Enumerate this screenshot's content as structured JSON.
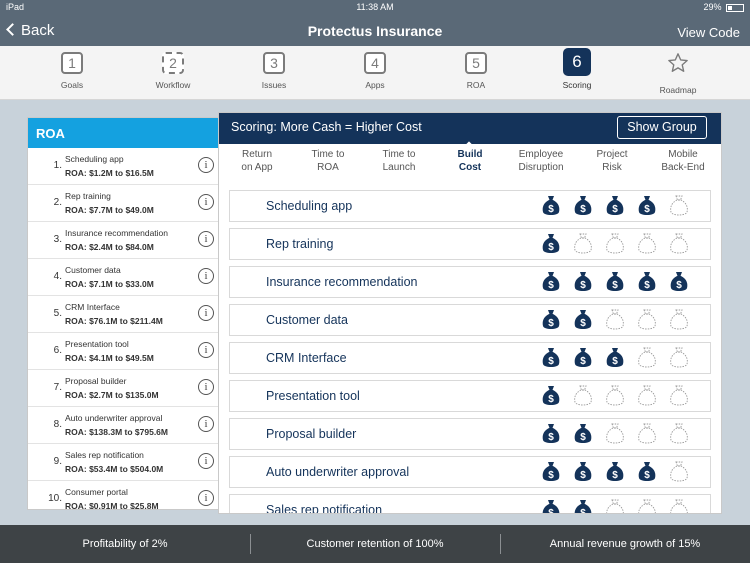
{
  "status": {
    "device": "iPad",
    "time": "11:38 AM",
    "battery": "29%",
    "battery_level": 0.29
  },
  "header": {
    "back_label": "Back",
    "title": "Protectus Insurance",
    "view_code_label": "View Code"
  },
  "steps": [
    {
      "num": "1",
      "label": "Goals"
    },
    {
      "num": "2",
      "label": "Workflow"
    },
    {
      "num": "3",
      "label": "Issues"
    },
    {
      "num": "4",
      "label": "Apps"
    },
    {
      "num": "5",
      "label": "ROA"
    },
    {
      "num": "6",
      "label": "Scoring"
    },
    {
      "num": "",
      "label": "Roadmap"
    }
  ],
  "roa_panel": {
    "title": "ROA",
    "items": [
      {
        "num": "1.",
        "name": "Scheduling app",
        "roa": "ROA: $1.2M to $16.5M"
      },
      {
        "num": "2.",
        "name": "Rep training",
        "roa": "ROA: $7.7M to $49.0M"
      },
      {
        "num": "3.",
        "name": "Insurance recommendation",
        "roa": "ROA: $2.4M to $84.0M"
      },
      {
        "num": "4.",
        "name": "Customer data",
        "roa": "ROA: $7.1M to $33.0M"
      },
      {
        "num": "5.",
        "name": "CRM Interface",
        "roa": "ROA: $76.1M to $211.4M"
      },
      {
        "num": "6.",
        "name": "Presentation tool",
        "roa": "ROA: $4.1M to $49.5M"
      },
      {
        "num": "7.",
        "name": "Proposal builder",
        "roa": "ROA: $2.7M to $135.0M"
      },
      {
        "num": "8.",
        "name": "Auto underwriter approval",
        "roa": "ROA: $138.3M to $795.6M"
      },
      {
        "num": "9.",
        "name": "Sales rep notification",
        "roa": "ROA: $53.4M to $504.0M"
      },
      {
        "num": "10.",
        "name": "Consumer portal",
        "roa": "ROA: $0.91M to $25.8M"
      }
    ]
  },
  "scoring": {
    "title": "Scoring: More Cash = Higher Cost",
    "show_group_label": "Show Group",
    "columns": [
      {
        "l1": "Return",
        "l2": "on App"
      },
      {
        "l1": "Time to",
        "l2": "ROA"
      },
      {
        "l1": "Time to",
        "l2": "Launch"
      },
      {
        "l1": "Build",
        "l2": "Cost"
      },
      {
        "l1": "Employee",
        "l2": "Disruption"
      },
      {
        "l1": "Project",
        "l2": "Risk"
      },
      {
        "l1": "Mobile",
        "l2": "Back-End"
      }
    ],
    "rows": [
      {
        "name": "Scheduling app",
        "score": 4
      },
      {
        "name": "Rep training",
        "score": 1
      },
      {
        "name": "Insurance recommendation",
        "score": 5
      },
      {
        "name": "Customer data",
        "score": 2
      },
      {
        "name": "CRM Interface",
        "score": 3
      },
      {
        "name": "Presentation tool",
        "score": 1
      },
      {
        "name": "Proposal builder",
        "score": 2
      },
      {
        "name": "Auto underwriter approval",
        "score": 4
      },
      {
        "name": "Sales rep notification",
        "score": 2
      }
    ]
  },
  "metrics": [
    "Profitability of 2%",
    "Customer retention of 100%",
    "Annual revenue growth of 15%"
  ],
  "colors": {
    "navy": "#14335a",
    "accent_blue": "#14a1e0",
    "header_gray": "#5a6977"
  }
}
